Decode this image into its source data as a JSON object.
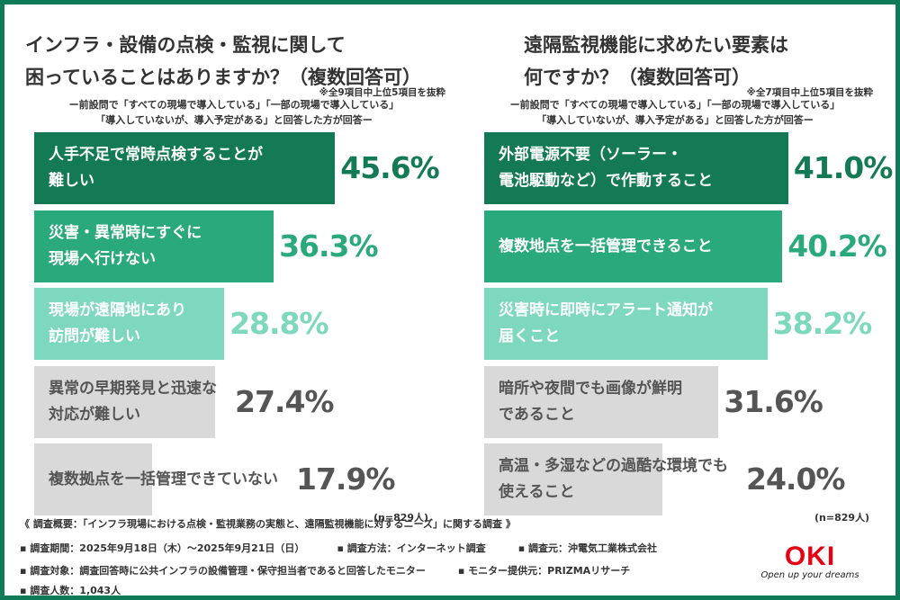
{
  "colors": {
    "dark": "#137a55",
    "mid": "#2aa97d",
    "light": "#7dd8bd",
    "gray": "#d9d9d9",
    "gray_text": "#555555",
    "border": "#0f7a57"
  },
  "chart_data": [
    {
      "type": "bar",
      "orientation": "horizontal",
      "title": "インフラ・設備の点検・監視に関して困っていることはありますか？（複数回答可）",
      "title_lines": [
        "インフラ・設備の点検・監視に関して",
        "困っていることはありますか？（複数回答可）"
      ],
      "note": "※全9項目中上位5項目を抜粋",
      "subtitle_lines": [
        "ー前設問で「すべての現場で導入している」「一部の現場で導入している」",
        "「導入していないが、導入予定がある」と回答した方が回答ー"
      ],
      "categories": [
        [
          "人手不足で常時点検することが",
          "難しい"
        ],
        [
          "災害・異常時にすぐに",
          "現場へ行けない"
        ],
        [
          "現場が遠隔地にあり",
          "訪問が難しい"
        ],
        [
          "異常の早期発見と迅速な",
          "対応が難しい"
        ],
        [
          "複数拠点を一括管理できていない"
        ]
      ],
      "values": [
        45.6,
        36.3,
        28.8,
        27.4,
        17.9
      ],
      "labels": [
        "45.6%",
        "36.3%",
        "28.8%",
        "27.4%",
        "17.9%"
      ],
      "sample": "(n=829人)"
    },
    {
      "type": "bar",
      "orientation": "horizontal",
      "title": "遠隔監視機能に求めたい要素は何ですか？（複数回答可）",
      "title_lines": [
        "遠隔監視機能に求めたい要素は",
        "何ですか？（複数回答可）"
      ],
      "note": "※全7項目中上位5項目を抜粋",
      "subtitle_lines": [
        "ー前設問で「すべての現場で導入している」「一部の現場で導入している」",
        "「導入していないが、導入予定がある」と回答した方が回答ー"
      ],
      "categories": [
        [
          "外部電源不要（ソーラー・",
          "電池駆動など）で作動すること"
        ],
        [
          "複数地点を一括管理できること"
        ],
        [
          "災害時に即時にアラート通知が",
          "届くこと"
        ],
        [
          "暗所や夜間でも画像が鮮明",
          "であること"
        ],
        [
          "高温・多湿などの過酷な環境でも",
          "使えること"
        ]
      ],
      "values": [
        41.0,
        40.2,
        38.2,
        31.6,
        24.0
      ],
      "labels": [
        "41.0%",
        "40.2%",
        "38.2%",
        "31.6%",
        "24.0%"
      ],
      "sample": "(n=829人)"
    }
  ],
  "footer": {
    "overview": "《 調査概要：「インフラ現場における点検・監視業務の実態と、遠隔監視機能に対するニーズ」に関する調査 》",
    "period": "▪ 調査期間：2025年9月18日（木）～2025年9月21日（日）",
    "method": "▪ 調査方法：インターネット調査",
    "source": "▪ 調査元：沖電気工業株式会社",
    "target": "▪ 調査対象：調査回答時に公共インフラの設備管理・保守担当者であると回答したモニター",
    "provider": "▪ モニター提供元：PRIZMAリサーチ",
    "count": "▪ 調査人数：1,043人"
  },
  "logo": {
    "mark": "OKI",
    "tagline": "Open up your dreams"
  }
}
